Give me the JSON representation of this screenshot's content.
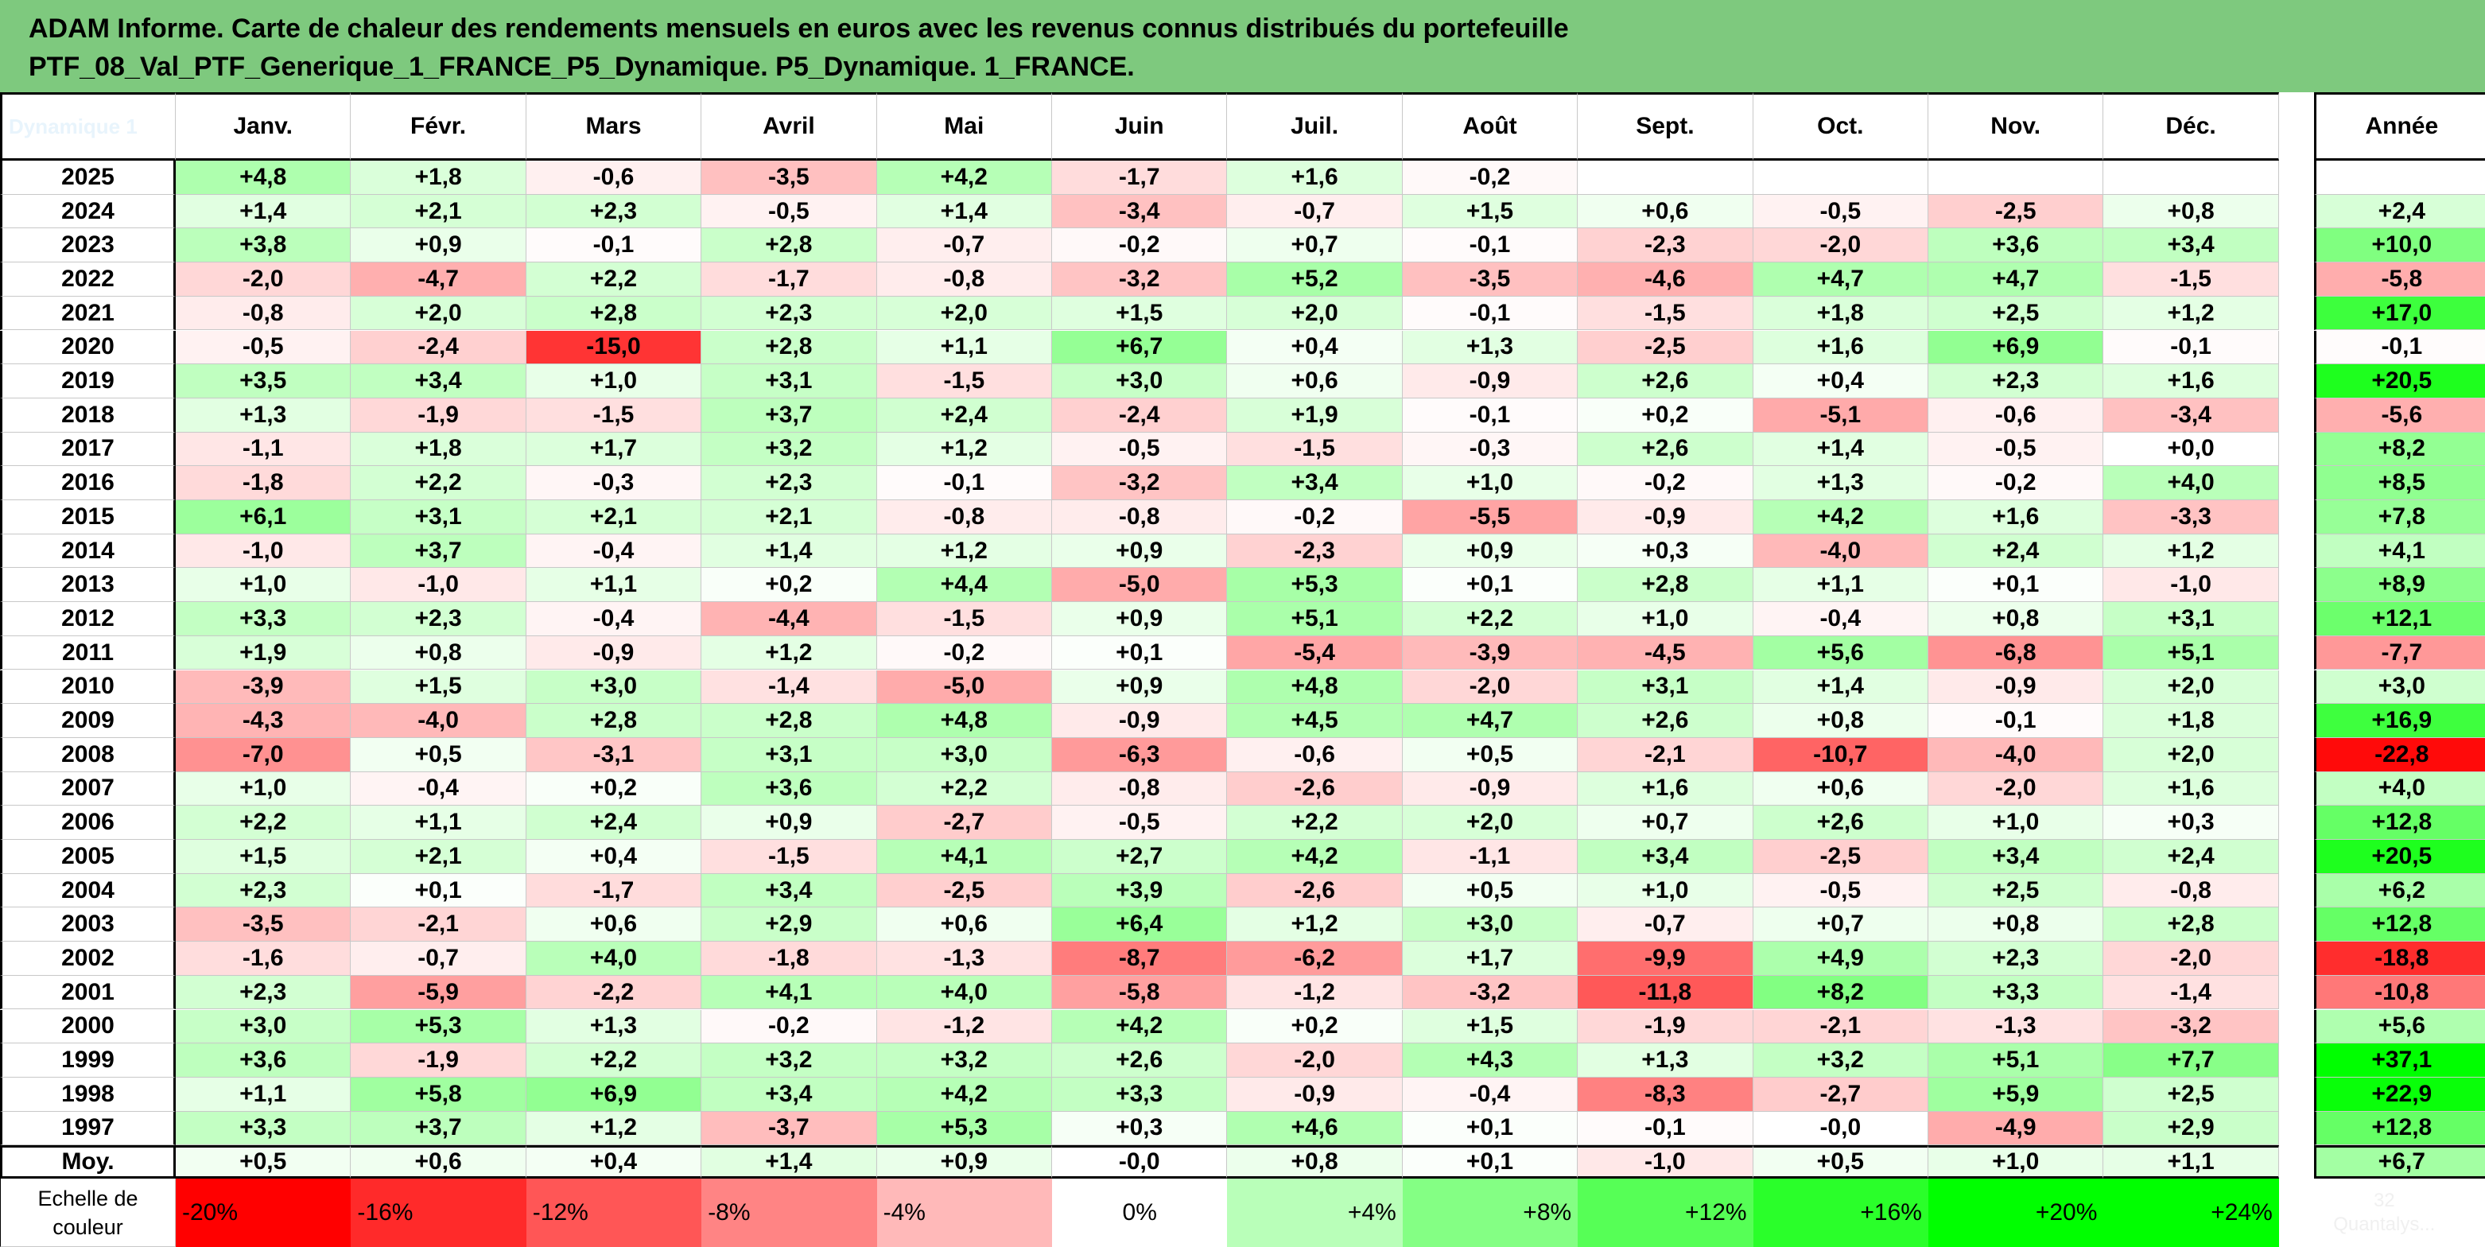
{
  "title": {
    "line1": "ADAM Informe. Carte de chaleur des rendements mensuels en euros avec les revenus connus distribués du portefeuille",
    "line2": "PTF_08_Val_PTF_Generique_1_FRANCE_P5_Dynamique. P5_Dynamique. 1_FRANCE."
  },
  "chart_data": {
    "type": "heatmap",
    "corner_label": "Dynamique 1",
    "columns": [
      "Janv.",
      "Févr.",
      "Mars",
      "Avril",
      "Mai",
      "Juin",
      "Juil.",
      "Août",
      "Sept.",
      "Oct.",
      "Nov.",
      "Déc."
    ],
    "annual_header": "Année",
    "rows": [
      {
        "year": "2025",
        "values": [
          "+4,8",
          "+1,8",
          "-0,6",
          "-3,5",
          "+4,2",
          "-1,7",
          "+1,6",
          "-0,2",
          "",
          "",
          "",
          ""
        ],
        "annual": ""
      },
      {
        "year": "2024",
        "values": [
          "+1,4",
          "+2,1",
          "+2,3",
          "-0,5",
          "+1,4",
          "-3,4",
          "-0,7",
          "+1,5",
          "+0,6",
          "-0,5",
          "-2,5",
          "+0,8"
        ],
        "annual": "+2,4"
      },
      {
        "year": "2023",
        "values": [
          "+3,8",
          "+0,9",
          "-0,1",
          "+2,8",
          "-0,7",
          "-0,2",
          "+0,7",
          "-0,1",
          "-2,3",
          "-2,0",
          "+3,6",
          "+3,4"
        ],
        "annual": "+10,0"
      },
      {
        "year": "2022",
        "values": [
          "-2,0",
          "-4,7",
          "+2,2",
          "-1,7",
          "-0,8",
          "-3,2",
          "+5,2",
          "-3,5",
          "-4,6",
          "+4,7",
          "+4,7",
          "-1,5"
        ],
        "annual": "-5,8"
      },
      {
        "year": "2021",
        "values": [
          "-0,8",
          "+2,0",
          "+2,8",
          "+2,3",
          "+2,0",
          "+1,5",
          "+2,0",
          "-0,1",
          "-1,5",
          "+1,8",
          "+2,5",
          "+1,2"
        ],
        "annual": "+17,0"
      },
      {
        "year": "2020",
        "values": [
          "-0,5",
          "-2,4",
          "-15,0",
          "+2,8",
          "+1,1",
          "+6,7",
          "+0,4",
          "+1,3",
          "-2,5",
          "+1,6",
          "+6,9",
          "-0,1"
        ],
        "annual": "-0,1"
      },
      {
        "year": "2019",
        "values": [
          "+3,5",
          "+3,4",
          "+1,0",
          "+3,1",
          "-1,5",
          "+3,0",
          "+0,6",
          "-0,9",
          "+2,6",
          "+0,4",
          "+2,3",
          "+1,6"
        ],
        "annual": "+20,5"
      },
      {
        "year": "2018",
        "values": [
          "+1,3",
          "-1,9",
          "-1,5",
          "+3,7",
          "+2,4",
          "-2,4",
          "+1,9",
          "-0,1",
          "+0,2",
          "-5,1",
          "-0,6",
          "-3,4"
        ],
        "annual": "-5,6"
      },
      {
        "year": "2017",
        "values": [
          "-1,1",
          "+1,8",
          "+1,7",
          "+3,2",
          "+1,2",
          "-0,5",
          "-1,5",
          "-0,3",
          "+2,6",
          "+1,4",
          "-0,5",
          "+0,0"
        ],
        "annual": "+8,2"
      },
      {
        "year": "2016",
        "values": [
          "-1,8",
          "+2,2",
          "-0,3",
          "+2,3",
          "-0,1",
          "-3,2",
          "+3,4",
          "+1,0",
          "-0,2",
          "+1,3",
          "-0,2",
          "+4,0"
        ],
        "annual": "+8,5"
      },
      {
        "year": "2015",
        "values": [
          "+6,1",
          "+3,1",
          "+2,1",
          "+2,1",
          "-0,8",
          "-0,8",
          "-0,2",
          "-5,5",
          "-0,9",
          "+4,2",
          "+1,6",
          "-3,3"
        ],
        "annual": "+7,8"
      },
      {
        "year": "2014",
        "values": [
          "-1,0",
          "+3,7",
          "-0,4",
          "+1,4",
          "+1,2",
          "+0,9",
          "-2,3",
          "+0,9",
          "+0,3",
          "-4,0",
          "+2,4",
          "+1,2"
        ],
        "annual": "+4,1"
      },
      {
        "year": "2013",
        "values": [
          "+1,0",
          "-1,0",
          "+1,1",
          "+0,2",
          "+4,4",
          "-5,0",
          "+5,3",
          "+0,1",
          "+2,8",
          "+1,1",
          "+0,1",
          "-1,0"
        ],
        "annual": "+8,9"
      },
      {
        "year": "2012",
        "values": [
          "+3,3",
          "+2,3",
          "-0,4",
          "-4,4",
          "-1,5",
          "+0,9",
          "+5,1",
          "+2,2",
          "+1,0",
          "-0,4",
          "+0,8",
          "+3,1"
        ],
        "annual": "+12,1"
      },
      {
        "year": "2011",
        "values": [
          "+1,9",
          "+0,8",
          "-0,9",
          "+1,2",
          "-0,2",
          "+0,1",
          "-5,4",
          "-3,9",
          "-4,5",
          "+5,6",
          "-6,8",
          "+5,1"
        ],
        "annual": "-7,7"
      },
      {
        "year": "2010",
        "values": [
          "-3,9",
          "+1,5",
          "+3,0",
          "-1,4",
          "-5,0",
          "+0,9",
          "+4,8",
          "-2,0",
          "+3,1",
          "+1,4",
          "-0,9",
          "+2,0"
        ],
        "annual": "+3,0"
      },
      {
        "year": "2009",
        "values": [
          "-4,3",
          "-4,0",
          "+2,8",
          "+2,8",
          "+4,8",
          "-0,9",
          "+4,5",
          "+4,7",
          "+2,6",
          "+0,8",
          "-0,1",
          "+1,8"
        ],
        "annual": "+16,9"
      },
      {
        "year": "2008",
        "values": [
          "-7,0",
          "+0,5",
          "-3,1",
          "+3,1",
          "+3,0",
          "-6,3",
          "-0,6",
          "+0,5",
          "-2,1",
          "-10,7",
          "-4,0",
          "+2,0"
        ],
        "annual": "-22,8"
      },
      {
        "year": "2007",
        "values": [
          "+1,0",
          "-0,4",
          "+0,2",
          "+3,6",
          "+2,2",
          "-0,8",
          "-2,6",
          "-0,9",
          "+1,6",
          "+0,6",
          "-2,0",
          "+1,6"
        ],
        "annual": "+4,0"
      },
      {
        "year": "2006",
        "values": [
          "+2,2",
          "+1,1",
          "+2,4",
          "+0,9",
          "-2,7",
          "-0,5",
          "+2,2",
          "+2,0",
          "+0,7",
          "+2,6",
          "+1,0",
          "+0,3"
        ],
        "annual": "+12,8"
      },
      {
        "year": "2005",
        "values": [
          "+1,5",
          "+2,1",
          "+0,4",
          "-1,5",
          "+4,1",
          "+2,7",
          "+4,2",
          "-1,1",
          "+3,4",
          "-2,5",
          "+3,4",
          "+2,4"
        ],
        "annual": "+20,5"
      },
      {
        "year": "2004",
        "values": [
          "+2,3",
          "+0,1",
          "-1,7",
          "+3,4",
          "-2,5",
          "+3,9",
          "-2,6",
          "+0,5",
          "+1,0",
          "-0,5",
          "+2,5",
          "-0,8"
        ],
        "annual": "+6,2"
      },
      {
        "year": "2003",
        "values": [
          "-3,5",
          "-2,1",
          "+0,6",
          "+2,9",
          "+0,6",
          "+6,4",
          "+1,2",
          "+3,0",
          "-0,7",
          "+0,7",
          "+0,8",
          "+2,8"
        ],
        "annual": "+12,8"
      },
      {
        "year": "2002",
        "values": [
          "-1,6",
          "-0,7",
          "+4,0",
          "-1,8",
          "-1,3",
          "-8,7",
          "-6,2",
          "+1,7",
          "-9,9",
          "+4,9",
          "+2,3",
          "-2,0"
        ],
        "annual": "-18,8"
      },
      {
        "year": "2001",
        "values": [
          "+2,3",
          "-5,9",
          "-2,2",
          "+4,1",
          "+4,0",
          "-5,8",
          "-1,2",
          "-3,2",
          "-11,8",
          "+8,2",
          "+3,3",
          "-1,4"
        ],
        "annual": "-10,8"
      },
      {
        "year": "2000",
        "values": [
          "+3,0",
          "+5,3",
          "+1,3",
          "-0,2",
          "-1,2",
          "+4,2",
          "+0,2",
          "+1,5",
          "-1,9",
          "-2,1",
          "-1,3",
          "-3,2"
        ],
        "annual": "+5,6"
      },
      {
        "year": "1999",
        "values": [
          "+3,6",
          "-1,9",
          "+2,2",
          "+3,2",
          "+3,2",
          "+2,6",
          "-2,0",
          "+4,3",
          "+1,3",
          "+3,2",
          "+5,1",
          "+7,7"
        ],
        "annual": "+37,1"
      },
      {
        "year": "1998",
        "values": [
          "+1,1",
          "+5,8",
          "+6,9",
          "+3,4",
          "+4,2",
          "+3,3",
          "-0,9",
          "-0,4",
          "-8,3",
          "-2,7",
          "+5,9",
          "+2,5"
        ],
        "annual": "+22,9"
      },
      {
        "year": "1997",
        "values": [
          "+3,3",
          "+3,7",
          "+1,2",
          "-3,7",
          "+5,3",
          "+0,3",
          "+4,6",
          "+0,1",
          "-0,1",
          "-0,0",
          "-4,9",
          "+2,9"
        ],
        "annual": "+12,8"
      }
    ],
    "average": {
      "label": "Moy.",
      "values": [
        "+0,5",
        "+0,6",
        "+0,4",
        "+1,4",
        "+0,9",
        "-0,0",
        "+0,8",
        "+0,1",
        "-1,0",
        "+0,5",
        "+1,0",
        "+1,1"
      ],
      "annual": "+6,7"
    },
    "color_scale": {
      "label_line1": "Echelle de",
      "label_line2": "couleur",
      "stops": [
        "-20%",
        "-16%",
        "-12%",
        "-8%",
        "-4%",
        "0%",
        "+4%",
        "+8%",
        "+12%",
        "+16%",
        "+20%",
        "+24%"
      ],
      "extra_line1": "32",
      "extra_line2": "Quantalys..."
    },
    "colors": {
      "negative_max": "#ff0000",
      "neutral": "#ffffff",
      "positive_max": "#00ff00",
      "title_bar": "#7ec97e"
    }
  }
}
